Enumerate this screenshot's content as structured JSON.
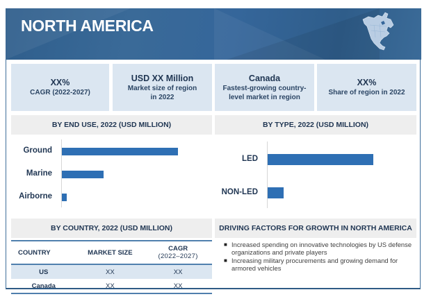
{
  "header": {
    "title": "NORTH AMERICA",
    "icon": "north-america-map-icon"
  },
  "kpis": [
    {
      "value": "XX%",
      "label": "CAGR (2022-2027)"
    },
    {
      "value": "USD XX Million",
      "label": "Market size of region in 2022"
    },
    {
      "value": "Canada",
      "label": "Fastest-growing country-level market in region"
    },
    {
      "value": "XX%",
      "label": "Share of region in 2022"
    }
  ],
  "sections": {
    "end_use_title": "BY END USE, 2022 (USD MILLION)",
    "type_title": "BY TYPE, 2022 (USD MILLION)",
    "country_title": "BY COUNTRY, 2022 (USD MILLION)",
    "drivers_title": "DRIVING FACTORS FOR GROWTH IN NORTH AMERICA"
  },
  "colors": {
    "bar": "#2e6fb4",
    "banner": "#35669a",
    "card": "#dbe6f1"
  },
  "chart_data": [
    {
      "type": "bar",
      "orientation": "horizontal",
      "title": "BY END USE, 2022 (USD MILLION)",
      "categories": [
        "Ground",
        "Marine",
        "Airborne"
      ],
      "values": [
        100,
        36,
        4
      ],
      "value_units": "relative (axis unlabeled)",
      "xlabel": "",
      "ylabel": "",
      "grid": false
    },
    {
      "type": "bar",
      "orientation": "horizontal",
      "title": "BY TYPE, 2022 (USD MILLION)",
      "categories": [
        "LED",
        "NON-LED"
      ],
      "values": [
        91,
        14
      ],
      "value_units": "relative (axis unlabeled)",
      "xlabel": "",
      "ylabel": "",
      "grid": false
    }
  ],
  "country_table": {
    "headers": [
      "COUNTRY",
      "MARKET SIZE",
      "CAGR\n(2022–2027)"
    ],
    "header_cagr_line1": "CAGR",
    "header_cagr_line2": "(2022–2027)",
    "rows": [
      {
        "country": "US",
        "market_size": "XX",
        "cagr": "XX"
      },
      {
        "country": "Canada",
        "market_size": "XX",
        "cagr": "XX"
      }
    ]
  },
  "drivers": [
    "Increased spending on innovative technologies by US defense organizations and private players",
    "Increasing military procurements and growing demand for armored vehicles"
  ]
}
